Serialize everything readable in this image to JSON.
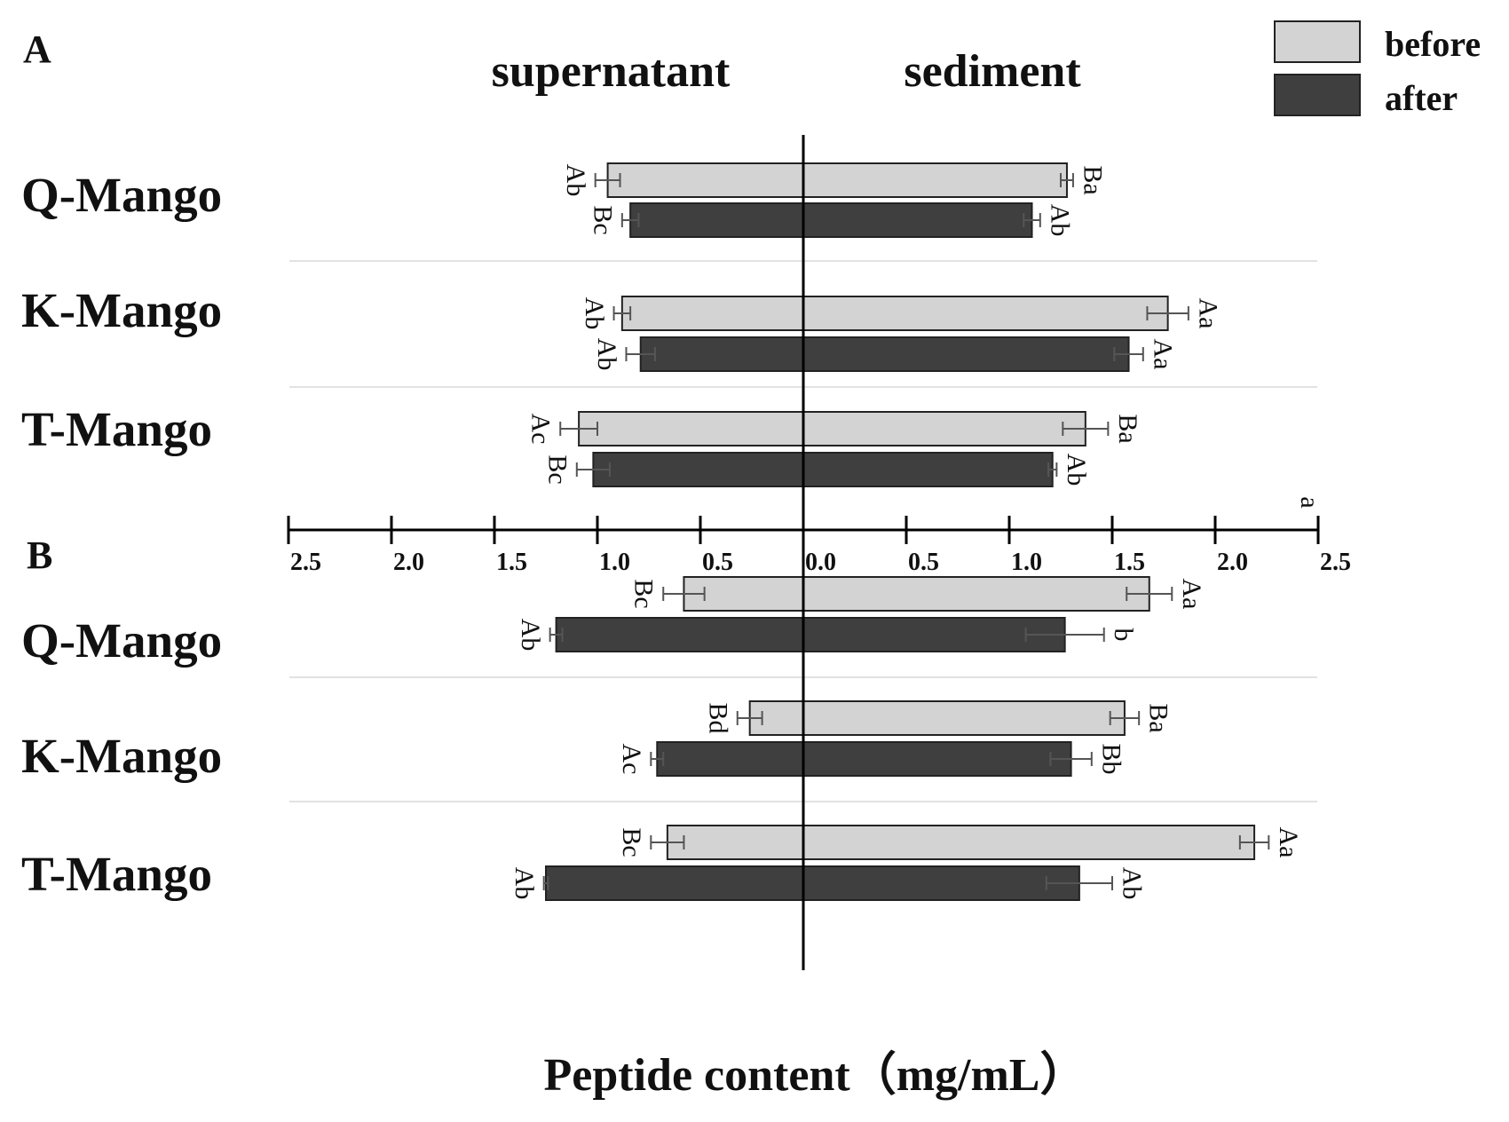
{
  "chart_data": {
    "type": "bar",
    "orientation": "horizontal-diverging",
    "column_headers": {
      "left": "supernatant",
      "right": "sediment"
    },
    "xlabel": "Peptide content（mg/mL）",
    "axis": {
      "range": [
        0,
        2.5
      ],
      "ticks_left": [
        "2.5",
        "2.0",
        "1.5",
        "1.0",
        "0.5"
      ],
      "tick_center": "0.0",
      "ticks_right": [
        "0.5",
        "1.0",
        "1.5",
        "2.0",
        "2.5"
      ],
      "corner_note": "a"
    },
    "legend": {
      "position": "top-right",
      "items": [
        {
          "name": "before",
          "color": "#d3d3d3"
        },
        {
          "name": "after",
          "color": "#3f3f3f"
        }
      ]
    },
    "panels": [
      {
        "label": "A",
        "categories": [
          {
            "name": "Q-Mango",
            "bars": [
              {
                "series": "before",
                "supernatant": 0.95,
                "supernatant_err": 0.06,
                "supernatant_sig": "Ab",
                "sediment": 1.28,
                "sediment_err": 0.03,
                "sediment_sig": "Ba"
              },
              {
                "series": "after",
                "supernatant": 0.84,
                "supernatant_err": 0.04,
                "supernatant_sig": "Bc",
                "sediment": 1.11,
                "sediment_err": 0.04,
                "sediment_sig": "Ab"
              }
            ]
          },
          {
            "name": "K-Mango",
            "bars": [
              {
                "series": "before",
                "supernatant": 0.88,
                "supernatant_err": 0.04,
                "supernatant_sig": "Ab",
                "sediment": 1.77,
                "sediment_err": 0.1,
                "sediment_sig": "Aa"
              },
              {
                "series": "after",
                "supernatant": 0.79,
                "supernatant_err": 0.07,
                "supernatant_sig": "Ab",
                "sediment": 1.58,
                "sediment_err": 0.07,
                "sediment_sig": "Aa"
              }
            ]
          },
          {
            "name": "T-Mango",
            "bars": [
              {
                "series": "before",
                "supernatant": 1.09,
                "supernatant_err": 0.09,
                "supernatant_sig": "Ac",
                "sediment": 1.37,
                "sediment_err": 0.11,
                "sediment_sig": "Ba"
              },
              {
                "series": "after",
                "supernatant": 1.02,
                "supernatant_err": 0.08,
                "supernatant_sig": "Bc",
                "sediment": 1.21,
                "sediment_err": 0.02,
                "sediment_sig": "Ab"
              }
            ]
          }
        ]
      },
      {
        "label": "B",
        "categories": [
          {
            "name": "Q-Mango",
            "bars": [
              {
                "series": "before",
                "supernatant": 0.58,
                "supernatant_err": 0.1,
                "supernatant_sig": "Bc",
                "sediment": 1.68,
                "sediment_err": 0.11,
                "sediment_sig": "Aa"
              },
              {
                "series": "after",
                "supernatant": 1.2,
                "supernatant_err": 0.03,
                "supernatant_sig": "Ab",
                "sediment": 1.27,
                "sediment_err": 0.19,
                "sediment_sig": "b"
              }
            ]
          },
          {
            "name": "K-Mango",
            "bars": [
              {
                "series": "before",
                "supernatant": 0.26,
                "supernatant_err": 0.06,
                "supernatant_sig": "Bd",
                "sediment": 1.56,
                "sediment_err": 0.07,
                "sediment_sig": "Ba"
              },
              {
                "series": "after",
                "supernatant": 0.71,
                "supernatant_err": 0.03,
                "supernatant_sig": "Ac",
                "sediment": 1.3,
                "sediment_err": 0.1,
                "sediment_sig": "Bb"
              }
            ]
          },
          {
            "name": "T-Mango",
            "bars": [
              {
                "series": "before",
                "supernatant": 0.66,
                "supernatant_err": 0.08,
                "supernatant_sig": "Bc",
                "sediment": 2.19,
                "sediment_err": 0.07,
                "sediment_sig": "Aa"
              },
              {
                "series": "after",
                "supernatant": 1.25,
                "supernatant_err": 0.01,
                "supernatant_sig": "Ab",
                "sediment": 1.34,
                "sediment_err": 0.16,
                "sediment_sig": "Ab"
              }
            ]
          }
        ]
      }
    ]
  }
}
